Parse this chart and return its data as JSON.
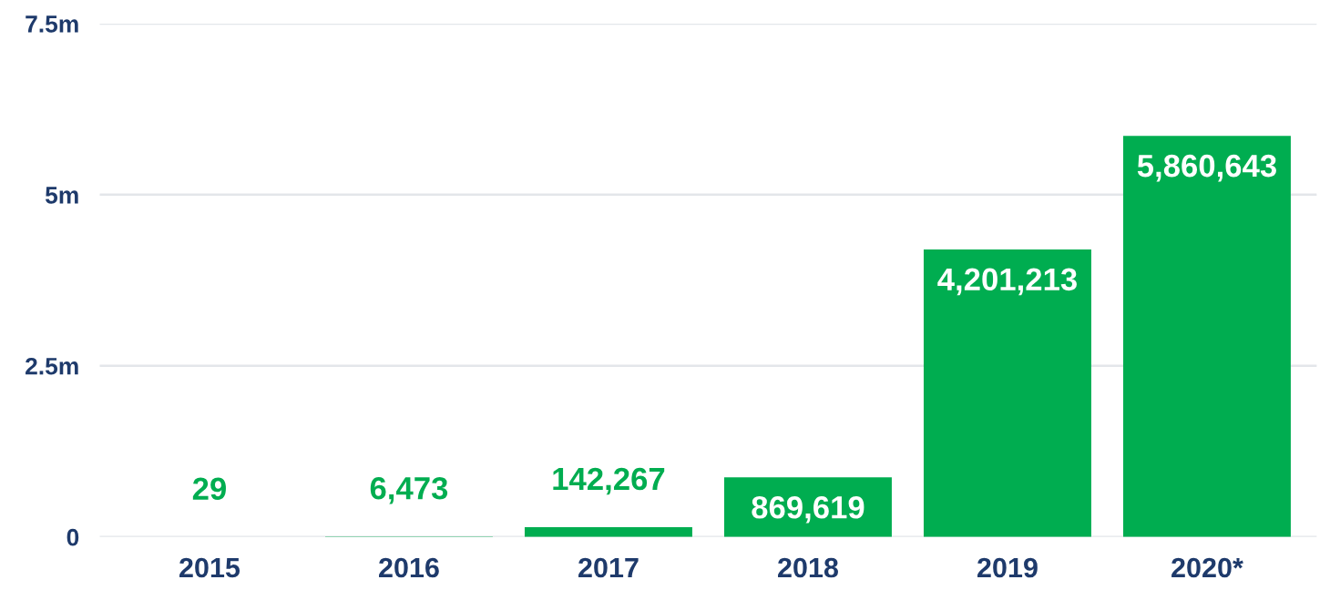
{
  "chart_data": {
    "type": "bar",
    "categories": [
      "2015",
      "2016",
      "2017",
      "2018",
      "2019",
      "2020*"
    ],
    "values": [
      29,
      6473,
      142267,
      869619,
      4201213,
      5860643
    ],
    "color": "#00ad50",
    "ylim": [
      0,
      7500000
    ],
    "yticks": [
      {
        "value": 0,
        "label": "0"
      },
      {
        "value": 2500000,
        "label": "2.5m"
      },
      {
        "value": 5000000,
        "label": "5m"
      },
      {
        "value": 7500000,
        "label": "7.5m"
      }
    ],
    "grid": "y",
    "value_labels": [
      "29",
      "6,473",
      "142,267",
      "869,619",
      "4,201,213",
      "5,860,643"
    ]
  }
}
